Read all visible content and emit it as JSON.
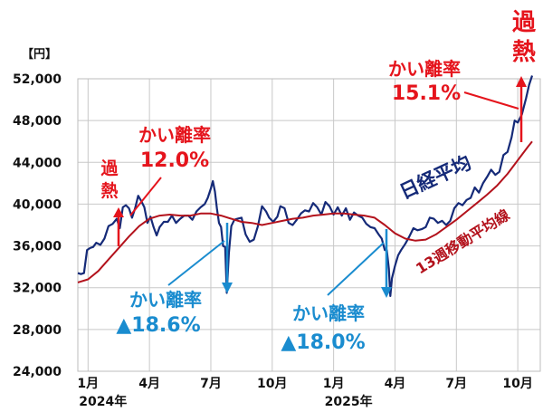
{
  "chart_data": {
    "type": "line",
    "unit_label": "【円】",
    "ylim": [
      24000,
      52000
    ],
    "y_ticks": [
      "24,000",
      "28,000",
      "32,000",
      "36,000",
      "40,000",
      "44,000",
      "48,000",
      "52,000"
    ],
    "y_tick_values": [
      24000,
      28000,
      32000,
      36000,
      40000,
      44000,
      48000,
      52000
    ],
    "x_ticks": [
      {
        "label": "1月",
        "year_label": "2024年",
        "t": 0.5
      },
      {
        "label": "4月",
        "year_label": "",
        "t": 3.5
      },
      {
        "label": "7月",
        "year_label": "",
        "t": 6.5
      },
      {
        "label": "10月",
        "year_label": "",
        "t": 9.5
      },
      {
        "label": "1月",
        "year_label": "2025年",
        "t": 12.5
      },
      {
        "label": "4月",
        "year_label": "",
        "t": 15.5
      },
      {
        "label": "7月",
        "year_label": "",
        "t": 18.5
      },
      {
        "label": "10月",
        "year_label": "",
        "t": 21.5
      }
    ],
    "x_range": [
      0,
      22.6
    ],
    "grid": true,
    "series": [
      {
        "name": "日経平均",
        "color": "#152a78",
        "points": [
          [
            0.0,
            33400
          ],
          [
            0.15,
            33300
          ],
          [
            0.3,
            33400
          ],
          [
            0.45,
            35600
          ],
          [
            0.6,
            35800
          ],
          [
            0.75,
            35900
          ],
          [
            0.9,
            36300
          ],
          [
            1.1,
            36100
          ],
          [
            1.3,
            36700
          ],
          [
            1.5,
            37900
          ],
          [
            1.7,
            38100
          ],
          [
            1.9,
            38600
          ],
          [
            2.05,
            37700
          ],
          [
            2.2,
            39700
          ],
          [
            2.35,
            39900
          ],
          [
            2.5,
            39600
          ],
          [
            2.65,
            38700
          ],
          [
            2.8,
            39600
          ],
          [
            2.95,
            40800
          ],
          [
            3.1,
            40300
          ],
          [
            3.25,
            39700
          ],
          [
            3.4,
            38200
          ],
          [
            3.55,
            38800
          ],
          [
            3.7,
            37800
          ],
          [
            3.85,
            37000
          ],
          [
            4.0,
            37800
          ],
          [
            4.2,
            38300
          ],
          [
            4.4,
            38300
          ],
          [
            4.6,
            38900
          ],
          [
            4.8,
            38200
          ],
          [
            5.0,
            38600
          ],
          [
            5.2,
            38900
          ],
          [
            5.4,
            38900
          ],
          [
            5.6,
            38500
          ],
          [
            5.8,
            39300
          ],
          [
            6.0,
            39700
          ],
          [
            6.2,
            40000
          ],
          [
            6.35,
            40600
          ],
          [
            6.5,
            41500
          ],
          [
            6.6,
            42200
          ],
          [
            6.7,
            41200
          ],
          [
            6.8,
            39500
          ],
          [
            6.9,
            38200
          ],
          [
            7.0,
            37800
          ],
          [
            7.1,
            36000
          ],
          [
            7.2,
            35900
          ],
          [
            7.28,
            31500
          ],
          [
            7.38,
            35300
          ],
          [
            7.5,
            37900
          ],
          [
            7.65,
            38500
          ],
          [
            7.8,
            38600
          ],
          [
            8.0,
            38700
          ],
          [
            8.2,
            37100
          ],
          [
            8.4,
            36400
          ],
          [
            8.6,
            36600
          ],
          [
            8.8,
            37900
          ],
          [
            9.0,
            39800
          ],
          [
            9.2,
            39300
          ],
          [
            9.35,
            38700
          ],
          [
            9.55,
            38300
          ],
          [
            9.75,
            38800
          ],
          [
            9.9,
            39800
          ],
          [
            10.1,
            39600
          ],
          [
            10.3,
            38200
          ],
          [
            10.5,
            38000
          ],
          [
            10.7,
            38500
          ],
          [
            10.9,
            39100
          ],
          [
            11.1,
            39400
          ],
          [
            11.3,
            39300
          ],
          [
            11.5,
            40100
          ],
          [
            11.7,
            39700
          ],
          [
            11.9,
            39000
          ],
          [
            12.1,
            40200
          ],
          [
            12.3,
            39800
          ],
          [
            12.5,
            39000
          ],
          [
            12.7,
            39700
          ],
          [
            12.9,
            38900
          ],
          [
            13.1,
            39600
          ],
          [
            13.3,
            38500
          ],
          [
            13.5,
            39200
          ],
          [
            13.7,
            38900
          ],
          [
            13.9,
            38700
          ],
          [
            14.1,
            38100
          ],
          [
            14.3,
            37800
          ],
          [
            14.5,
            37700
          ],
          [
            14.7,
            37100
          ],
          [
            14.85,
            36700
          ],
          [
            15.0,
            35600
          ],
          [
            15.1,
            35600
          ],
          [
            15.2,
            33800
          ],
          [
            15.27,
            31200
          ],
          [
            15.35,
            32900
          ],
          [
            15.5,
            34100
          ],
          [
            15.65,
            35100
          ],
          [
            15.8,
            35600
          ],
          [
            16.0,
            36200
          ],
          [
            16.2,
            36900
          ],
          [
            16.4,
            37700
          ],
          [
            16.6,
            37500
          ],
          [
            16.8,
            37600
          ],
          [
            17.0,
            37800
          ],
          [
            17.2,
            38700
          ],
          [
            17.4,
            38600
          ],
          [
            17.6,
            38200
          ],
          [
            17.8,
            38400
          ],
          [
            18.0,
            38000
          ],
          [
            18.2,
            38400
          ],
          [
            18.4,
            39600
          ],
          [
            18.6,
            40100
          ],
          [
            18.8,
            39900
          ],
          [
            19.0,
            40400
          ],
          [
            19.2,
            40600
          ],
          [
            19.4,
            41600
          ],
          [
            19.6,
            41100
          ],
          [
            19.8,
            42000
          ],
          [
            20.0,
            42600
          ],
          [
            20.2,
            43300
          ],
          [
            20.4,
            42800
          ],
          [
            20.6,
            43100
          ],
          [
            20.8,
            44700
          ],
          [
            21.0,
            45000
          ],
          [
            21.2,
            46400
          ],
          [
            21.35,
            48000
          ],
          [
            21.5,
            47800
          ],
          [
            21.7,
            48600
          ],
          [
            21.9,
            50100
          ],
          [
            22.05,
            51400
          ],
          [
            22.2,
            52300
          ]
        ]
      },
      {
        "name": "13週移動平均線",
        "color": "#b3121c",
        "points": [
          [
            0.0,
            32500
          ],
          [
            0.5,
            32800
          ],
          [
            1.0,
            33600
          ],
          [
            1.5,
            34700
          ],
          [
            2.0,
            35800
          ],
          [
            2.5,
            36900
          ],
          [
            3.0,
            37900
          ],
          [
            3.5,
            38600
          ],
          [
            4.0,
            38900
          ],
          [
            4.5,
            39000
          ],
          [
            5.0,
            38900
          ],
          [
            5.5,
            38900
          ],
          [
            6.0,
            39100
          ],
          [
            6.5,
            39100
          ],
          [
            7.0,
            38900
          ],
          [
            7.5,
            38600
          ],
          [
            8.0,
            38300
          ],
          [
            8.5,
            38200
          ],
          [
            9.0,
            38000
          ],
          [
            9.5,
            38200
          ],
          [
            10.0,
            38400
          ],
          [
            10.5,
            38600
          ],
          [
            11.0,
            38700
          ],
          [
            11.5,
            38900
          ],
          [
            12.0,
            39000
          ],
          [
            12.5,
            39100
          ],
          [
            13.0,
            39100
          ],
          [
            13.5,
            39000
          ],
          [
            14.0,
            38900
          ],
          [
            14.5,
            38700
          ],
          [
            15.0,
            38000
          ],
          [
            15.5,
            37200
          ],
          [
            16.0,
            36700
          ],
          [
            16.5,
            36500
          ],
          [
            17.0,
            36600
          ],
          [
            17.5,
            37100
          ],
          [
            18.0,
            37800
          ],
          [
            18.5,
            38500
          ],
          [
            19.0,
            39300
          ],
          [
            19.5,
            40100
          ],
          [
            20.0,
            40900
          ],
          [
            20.5,
            41800
          ],
          [
            21.0,
            42900
          ],
          [
            21.5,
            44200
          ],
          [
            22.0,
            45500
          ],
          [
            22.2,
            46000
          ]
        ]
      }
    ],
    "series_labels": {
      "nikkei": "日経平均",
      "ma": "13週移動平均線"
    },
    "annotations": [
      {
        "id": "ann1",
        "lines": [
          "かい離率",
          "12.0%"
        ],
        "color": "#e5141c"
      },
      {
        "id": "ann1_overheat",
        "lines": [
          "過",
          "熱"
        ],
        "color": "#e5141c"
      },
      {
        "id": "ann2",
        "lines": [
          "かい離率",
          "▲18.6%"
        ],
        "color": "#1a8ccf"
      },
      {
        "id": "ann3",
        "lines": [
          "かい離率",
          "▲18.0%"
        ],
        "color": "#1a8ccf"
      },
      {
        "id": "ann4",
        "lines": [
          "かい離率",
          "15.1%"
        ],
        "color": "#e5141c"
      },
      {
        "id": "ann4_overheat",
        "lines": [
          "過",
          "熱"
        ],
        "color": "#e5141c"
      }
    ]
  }
}
